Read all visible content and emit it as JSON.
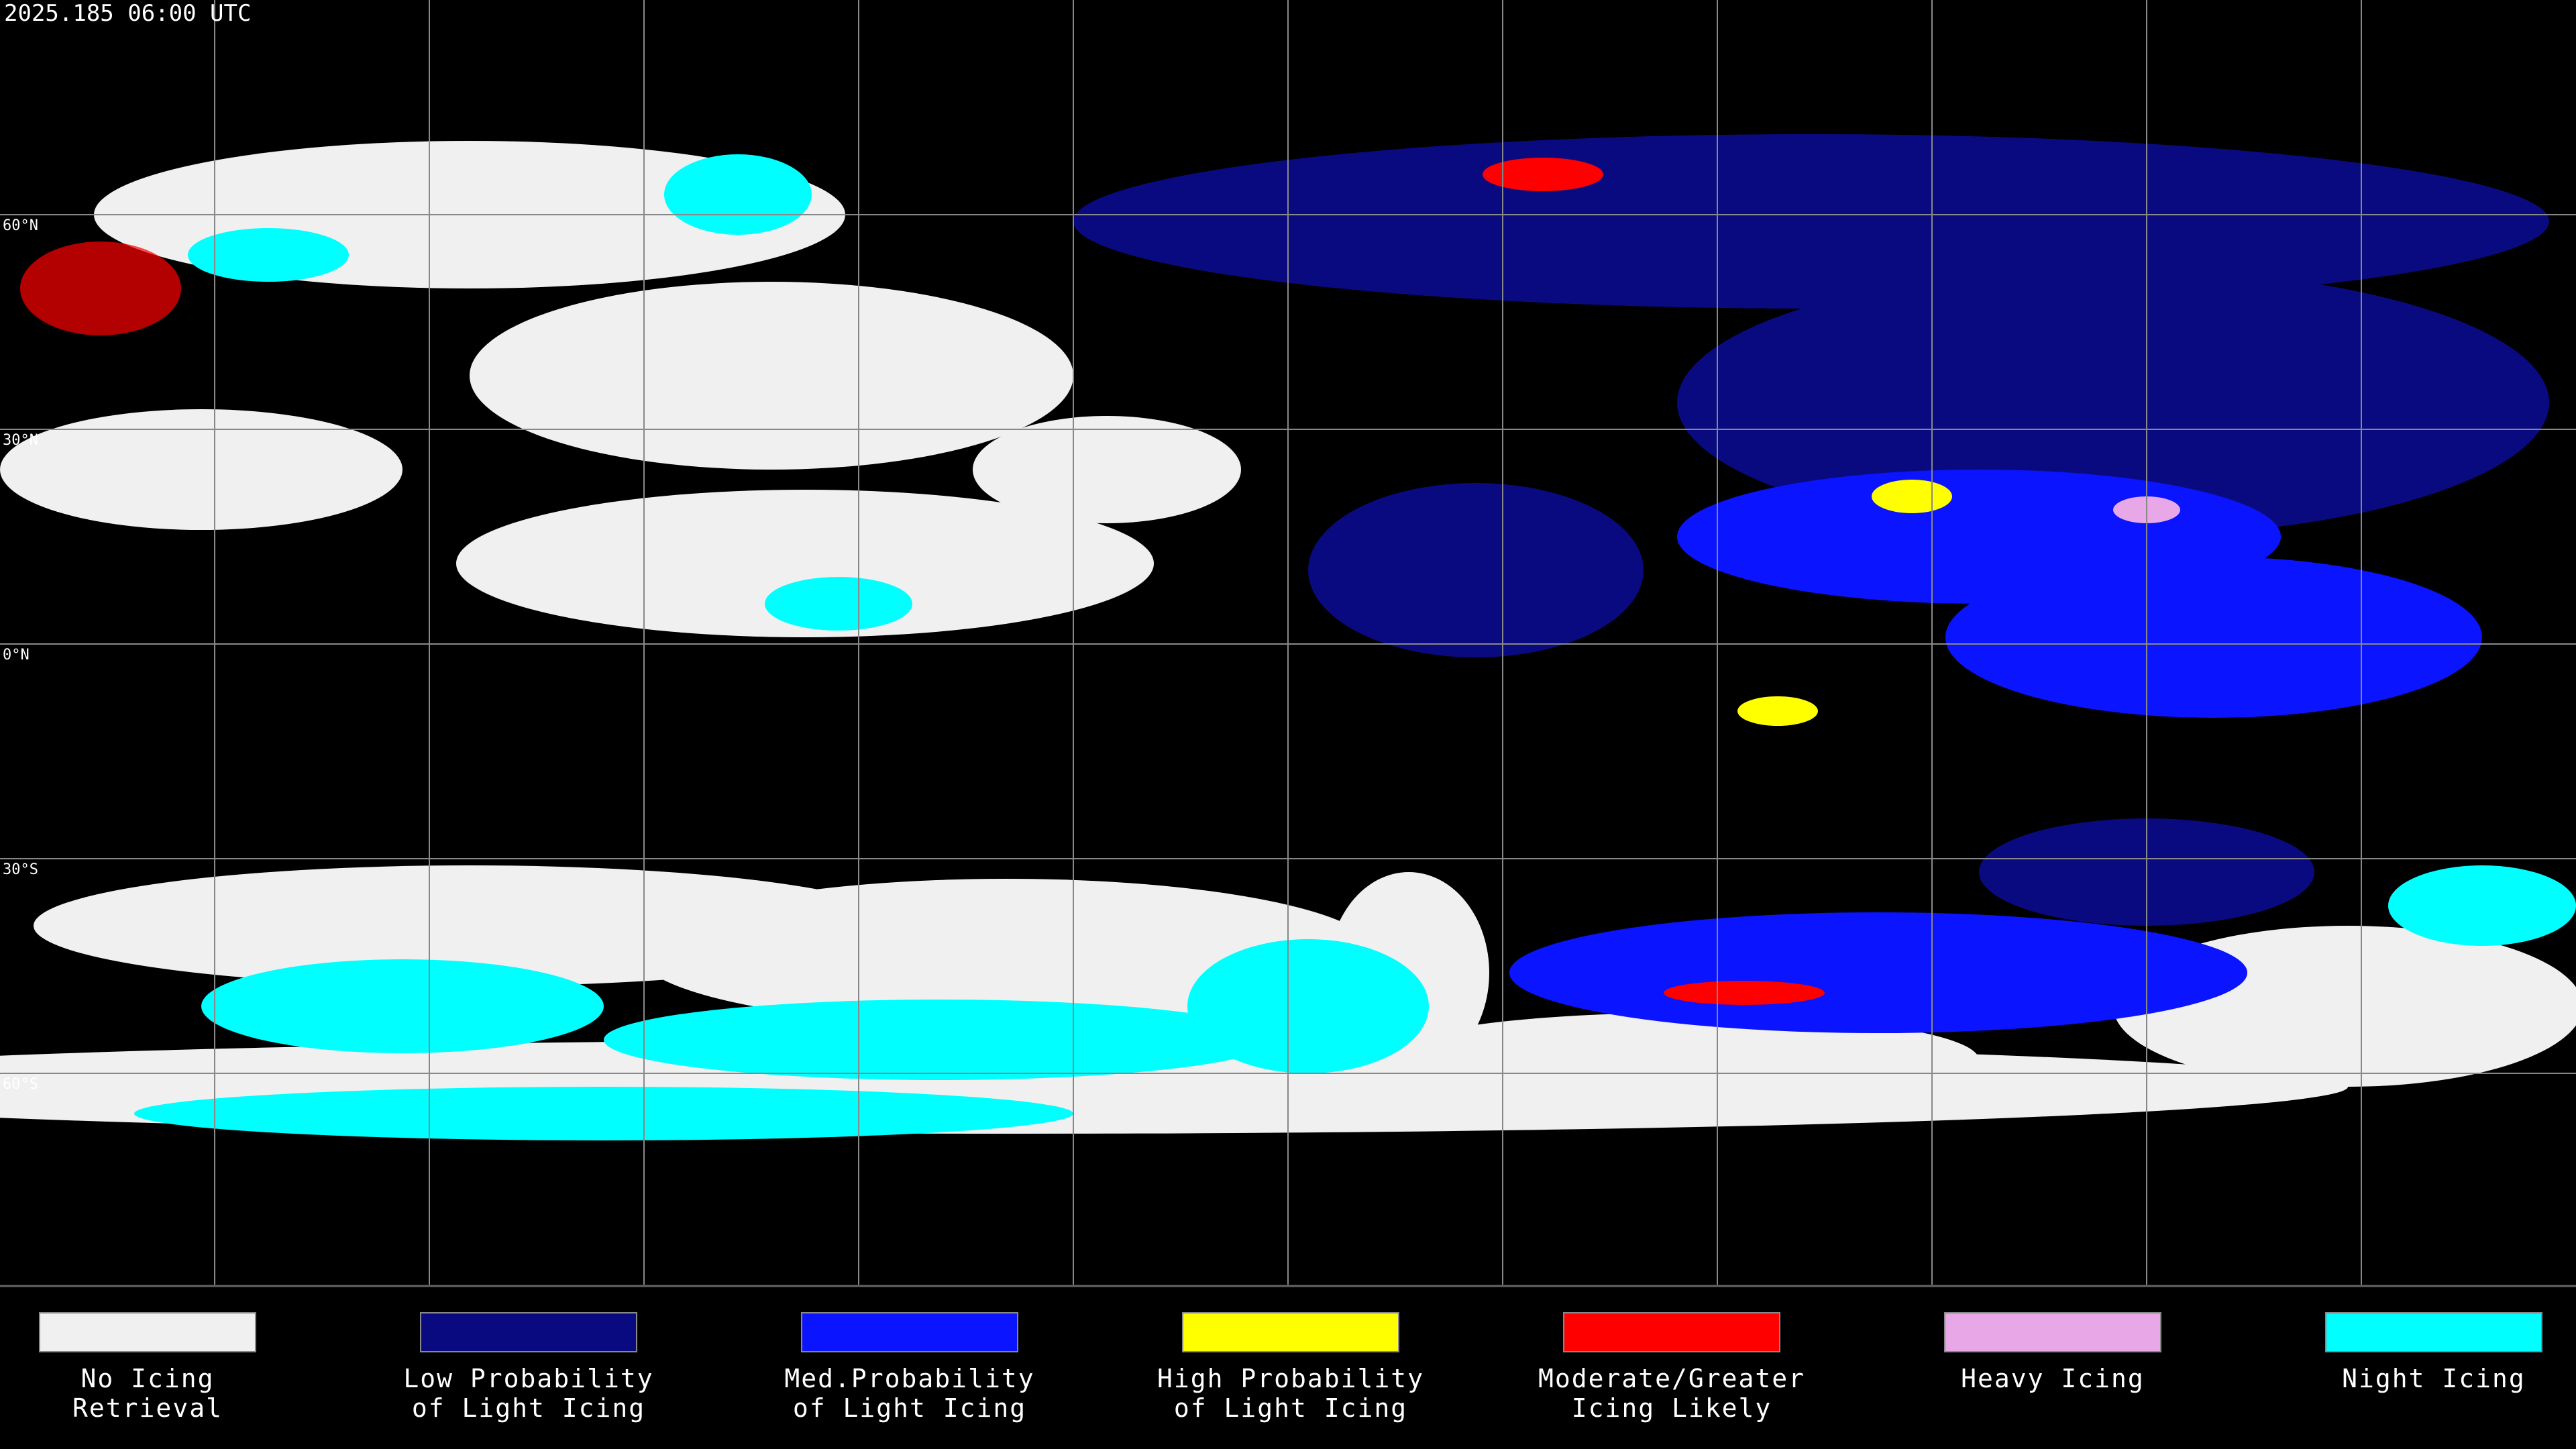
{
  "header": {
    "title": "2025.185 06:00 UTC"
  },
  "map": {
    "latitude_labels": [
      "60°N",
      "30°N",
      "0°N",
      "30°S",
      "60°S"
    ]
  },
  "legend": {
    "items": [
      {
        "label_lines": [
          "No Icing",
          "Retrieval"
        ],
        "color": "#f0f0f0"
      },
      {
        "label_lines": [
          "Low Probability",
          "of Light Icing"
        ],
        "color": "#0a0a80"
      },
      {
        "label_lines": [
          "Med.Probability",
          "of Light Icing"
        ],
        "color": "#0a14ff"
      },
      {
        "label_lines": [
          "High Probability",
          "of Light Icing"
        ],
        "color": "#ffff00"
      },
      {
        "label_lines": [
          "Moderate/Greater",
          "Icing Likely"
        ],
        "color": "#ff0000"
      },
      {
        "label_lines": [
          "Heavy Icing"
        ],
        "color": "#e8a8e8"
      },
      {
        "label_lines": [
          "Night Icing"
        ],
        "color": "#00ffff"
      }
    ]
  }
}
